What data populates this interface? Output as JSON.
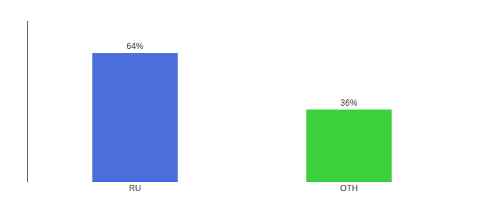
{
  "chart_data": {
    "type": "bar",
    "categories": [
      "RU",
      "OTH"
    ],
    "values": [
      64,
      36
    ],
    "value_labels": [
      "64%",
      "36%"
    ],
    "data_labels": true,
    "colors": [
      "#4a6fdc",
      "#3dd13d"
    ],
    "ylim": [
      0,
      80
    ],
    "tick_labels": "x",
    "grid": false
  }
}
